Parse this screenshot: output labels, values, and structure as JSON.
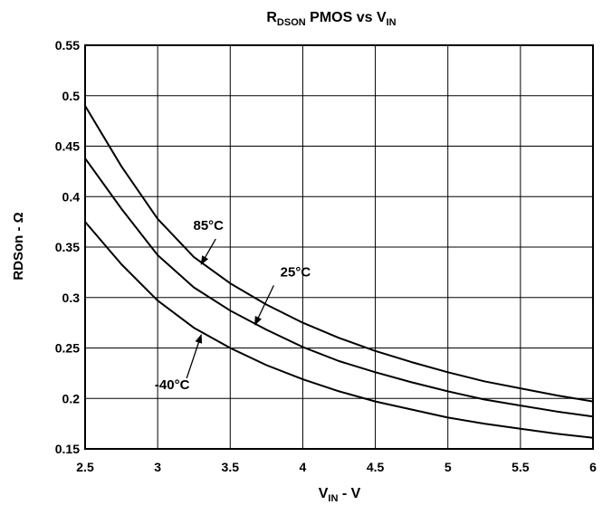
{
  "chart_data": {
    "type": "line",
    "title": {
      "main": "R",
      "sub": "DSON",
      "suffix": " PMOS vs V",
      "suffix_sub": "IN"
    },
    "xlabel": {
      "main": "V",
      "sub": "IN",
      "suffix": " - V"
    },
    "ylabel": "RDSon - Ω",
    "xlim": [
      2.5,
      6
    ],
    "ylim": [
      0.15,
      0.55
    ],
    "xticks": [
      "2.5",
      "3",
      "3.5",
      "4",
      "4.5",
      "5",
      "5.5",
      "6"
    ],
    "yticks": [
      "0.15",
      "0.2",
      "0.25",
      "0.3",
      "0.35",
      "0.4",
      "0.45",
      "0.5",
      "0.55"
    ],
    "grid": true,
    "legend": "none",
    "series": [
      {
        "name": "85°C",
        "x": [
          2.5,
          2.75,
          3,
          3.25,
          3.5,
          3.75,
          4,
          4.25,
          4.5,
          4.75,
          5,
          5.25,
          5.5,
          5.75,
          6
        ],
        "values": [
          0.49,
          0.43,
          0.378,
          0.34,
          0.314,
          0.293,
          0.275,
          0.26,
          0.247,
          0.236,
          0.226,
          0.217,
          0.21,
          0.203,
          0.197
        ]
      },
      {
        "name": "25°C",
        "x": [
          2.5,
          2.75,
          3,
          3.25,
          3.5,
          3.75,
          4,
          4.25,
          4.5,
          4.75,
          5,
          5.25,
          5.5,
          5.75,
          6
        ],
        "values": [
          0.438,
          0.388,
          0.342,
          0.31,
          0.287,
          0.268,
          0.251,
          0.237,
          0.226,
          0.216,
          0.207,
          0.199,
          0.193,
          0.187,
          0.182
        ]
      },
      {
        "name": "-40°C",
        "x": [
          2.5,
          2.75,
          3,
          3.25,
          3.5,
          3.75,
          4,
          4.25,
          4.5,
          4.75,
          5,
          5.25,
          5.5,
          5.75,
          6
        ],
        "values": [
          0.375,
          0.333,
          0.297,
          0.27,
          0.25,
          0.233,
          0.219,
          0.207,
          0.197,
          0.189,
          0.181,
          0.175,
          0.17,
          0.165,
          0.161
        ]
      }
    ],
    "annotations": [
      {
        "text": "85°C",
        "text_at": [
          3.35,
          0.367
        ],
        "arrow_from": [
          3.4,
          0.358
        ],
        "arrow_to": [
          3.3,
          0.333
        ]
      },
      {
        "text": "25°C",
        "text_at": [
          3.95,
          0.321
        ],
        "arrow_from": [
          3.8,
          0.312
        ],
        "arrow_to": [
          3.67,
          0.273
        ]
      },
      {
        "text": "-40°C",
        "text_at": [
          3.1,
          0.209
        ],
        "arrow_from": [
          3.2,
          0.22
        ],
        "arrow_to": [
          3.3,
          0.263
        ]
      }
    ],
    "colors": {
      "line": "#000000",
      "grid": "#000000",
      "background": "#ffffff"
    }
  }
}
